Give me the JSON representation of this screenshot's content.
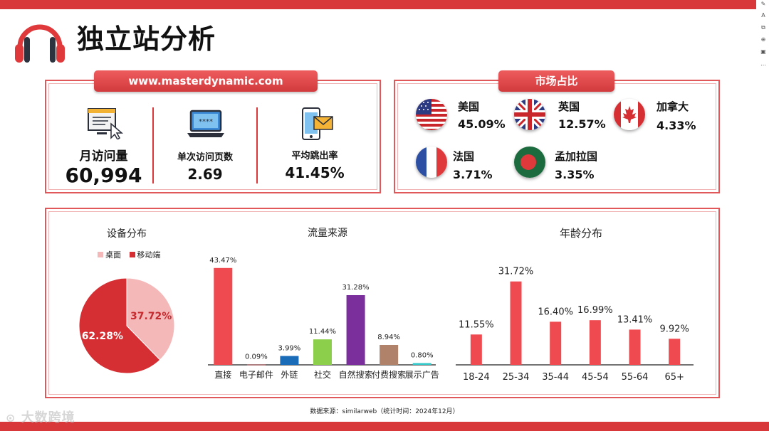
{
  "page_title": "独立站分析",
  "website": {
    "domain": "www.masterdynamic.com"
  },
  "metrics": [
    {
      "label": "月访问量",
      "value": "60,994",
      "icon": "monitor-document-icon"
    },
    {
      "label": "单次访问页数",
      "value": "2.69",
      "icon": "laptop-icon"
    },
    {
      "label": "平均跳出率",
      "value": "41.45%",
      "icon": "phone-mail-icon"
    }
  ],
  "market": {
    "title": "市场占比",
    "countries": [
      {
        "name": "美国",
        "share": "45.09%",
        "icon": "usa-flag-icon"
      },
      {
        "name": "英国",
        "share": "12.57%",
        "icon": "uk-flag-icon"
      },
      {
        "name": "加拿大",
        "share": "4.33%",
        "icon": "canada-flag-icon"
      },
      {
        "name": "法国",
        "share": "3.71%",
        "icon": "france-flag-icon"
      },
      {
        "name": "孟加拉国",
        "share": "3.35%",
        "icon": "bangladesh-flag-icon"
      }
    ]
  },
  "chart_data": [
    {
      "type": "pie",
      "title": "设备分布",
      "labels": [
        "桌面",
        "移动端"
      ],
      "values": [
        37.72,
        62.28
      ],
      "value_labels": [
        "37.72%",
        "62.28%"
      ],
      "colors": [
        "#f5b8b9",
        "#d62f33"
      ],
      "legend": "top"
    },
    {
      "type": "bar",
      "title": "流量来源",
      "categories": [
        "直接",
        "电子邮件",
        "外链",
        "社交",
        "自然搜索",
        "付费搜索",
        "展示广告"
      ],
      "values": [
        43.47,
        0.09,
        3.99,
        11.44,
        31.28,
        8.94,
        0.8
      ],
      "value_labels": [
        "43.47%",
        "0.09%",
        "3.99%",
        "11.44%",
        "31.28%",
        "8.94%",
        "0.80%"
      ],
      "colors": [
        "#ee4a4f",
        "#ee4a4f",
        "#1a6bb8",
        "#8ccf4a",
        "#7a2f9c",
        "#b0826a",
        "#35c7c7"
      ],
      "ylim": [
        0,
        45
      ]
    },
    {
      "type": "bar",
      "title": "年龄分布",
      "categories": [
        "18-24",
        "25-34",
        "35-44",
        "45-54",
        "55-64",
        "65+"
      ],
      "values": [
        11.55,
        31.72,
        16.4,
        16.99,
        13.41,
        9.92
      ],
      "value_labels": [
        "11.55%",
        "31.72%",
        "16.40%",
        "16.99%",
        "13.41%",
        "9.92%"
      ],
      "colors": [
        "#ee4a4f"
      ],
      "ylim": [
        0,
        33
      ]
    }
  ],
  "source": "数据来源：similarweb（统计时间：2024年12月）",
  "watermark": "大数跨境"
}
